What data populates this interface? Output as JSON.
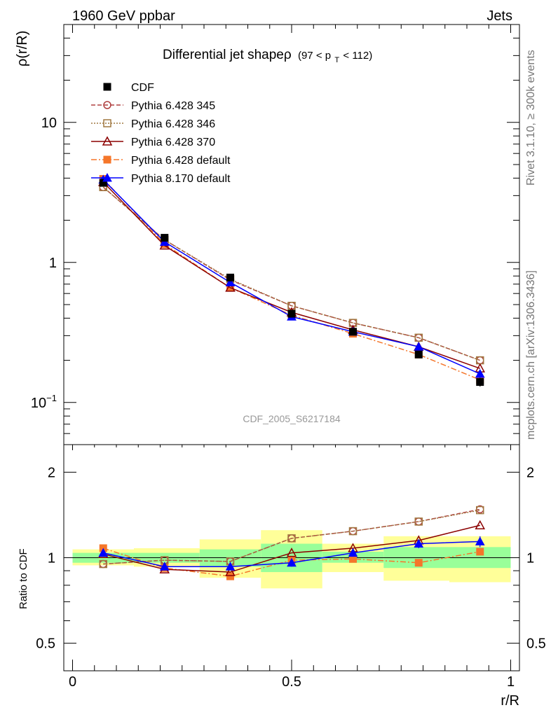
{
  "header": {
    "left": "1960 GeV ppbar",
    "right": "Jets"
  },
  "side_text": {
    "rivet": "Rivet 3.1.10, ≥ 300k events",
    "mcplots": "mcplots.cern.ch [arXiv:1306.3436]"
  },
  "title": {
    "main": "Differential jet shapeρ",
    "cut_pre": "(97 < p",
    "cut_sub": "T",
    "cut_post": " < 112)"
  },
  "watermark": "CDF_2005_S6217184",
  "colors": {
    "cdf": "#000000",
    "p345": "#b04040",
    "p346": "#a07840",
    "p370": "#8b0000",
    "p6def": "#f5762a",
    "p8def": "#0000ff",
    "band_inner": "#99ff99",
    "band_outer": "#ffff99"
  },
  "chart_data": [
    {
      "type": "line",
      "panel": "main",
      "ylabel": "ρ(r/R)",
      "yscale": "log",
      "ylim": [
        0.05,
        50
      ],
      "yticks": [
        {
          "v": 0.1,
          "base": "10",
          "exp": "−1"
        },
        {
          "v": 1,
          "base": "1",
          "exp": ""
        },
        {
          "v": 10,
          "base": "10",
          "exp": ""
        }
      ],
      "xlim": [
        -0.02,
        1.02
      ],
      "x": [
        0.07,
        0.21,
        0.36,
        0.5,
        0.64,
        0.79,
        0.93
      ],
      "legend_position": "top-left",
      "series": [
        {
          "name": "CDF",
          "key": "cdf",
          "marker": "square",
          "dash": "",
          "values": [
            3.7,
            1.5,
            0.78,
            0.43,
            0.32,
            0.22,
            0.14
          ],
          "yerr": [
            0.12,
            0.06,
            0.04,
            0.02,
            0.015,
            0.012,
            0.01
          ]
        },
        {
          "name": "Pythia 6.428 345",
          "key": "p345",
          "marker": "circle-open",
          "dash": "6,3",
          "values": [
            3.45,
            1.45,
            0.75,
            0.49,
            0.37,
            0.29,
            0.2
          ]
        },
        {
          "name": "Pythia 6.428 346",
          "key": "p346",
          "marker": "square-open",
          "dash": "2,2",
          "values": [
            3.45,
            1.45,
            0.76,
            0.49,
            0.37,
            0.29,
            0.2
          ]
        },
        {
          "name": "Pythia 6.428 370",
          "key": "p370",
          "marker": "triangle-open",
          "dash": "",
          "values": [
            3.75,
            1.32,
            0.66,
            0.44,
            0.33,
            0.25,
            0.175
          ]
        },
        {
          "name": "Pythia 6.428 default",
          "key": "p6def",
          "marker": "square",
          "dash": "8,3,2,3",
          "values": [
            3.95,
            1.35,
            0.66,
            0.42,
            0.31,
            0.22,
            0.145
          ]
        },
        {
          "name": "Pythia 8.170 default",
          "key": "p8def",
          "marker": "triangle",
          "dash": "",
          "values": [
            3.9,
            1.4,
            0.72,
            0.41,
            0.32,
            0.25,
            0.16
          ]
        }
      ]
    },
    {
      "type": "line",
      "panel": "ratio",
      "ylabel": "Ratio to CDF",
      "xlabel": "r/R",
      "yscale": "log",
      "ylim": [
        0.4,
        2.5
      ],
      "yticks": [
        {
          "v": 0.5,
          "label": "0.5"
        },
        {
          "v": 1,
          "label": "1"
        },
        {
          "v": 2,
          "label": "2"
        }
      ],
      "xticks": [
        {
          "v": 0,
          "label": "0"
        },
        {
          "v": 0.5,
          "label": "0.5"
        },
        {
          "v": 1,
          "label": "1"
        }
      ],
      "xlim": [
        -0.02,
        1.02
      ],
      "x": [
        0.07,
        0.21,
        0.36,
        0.5,
        0.64,
        0.79,
        0.93
      ],
      "bands": [
        {
          "x0": 0.0,
          "x1": 0.14,
          "inner": [
            0.96,
            1.04
          ],
          "outer": [
            0.94,
            1.07
          ]
        },
        {
          "x0": 0.14,
          "x1": 0.29,
          "inner": [
            0.96,
            1.04
          ],
          "outer": [
            0.93,
            1.08
          ]
        },
        {
          "x0": 0.29,
          "x1": 0.43,
          "inner": [
            0.93,
            1.07
          ],
          "outer": [
            0.85,
            1.16
          ]
        },
        {
          "x0": 0.43,
          "x1": 0.57,
          "inner": [
            0.89,
            1.12
          ],
          "outer": [
            0.78,
            1.25
          ]
        },
        {
          "x0": 0.57,
          "x1": 0.71,
          "inner": [
            0.96,
            1.05
          ],
          "outer": [
            0.89,
            1.12
          ]
        },
        {
          "x0": 0.71,
          "x1": 0.86,
          "inner": [
            0.92,
            1.09
          ],
          "outer": [
            0.83,
            1.19
          ]
        },
        {
          "x0": 0.86,
          "x1": 1.0,
          "inner": [
            0.92,
            1.09
          ],
          "outer": [
            0.82,
            1.19
          ]
        }
      ],
      "series": [
        {
          "name": "Pythia 6.428 345",
          "key": "p345",
          "marker": "circle-open",
          "dash": "6,3",
          "values": [
            0.95,
            0.98,
            0.97,
            1.17,
            1.24,
            1.34,
            1.48
          ]
        },
        {
          "name": "Pythia 6.428 346",
          "key": "p346",
          "marker": "square-open",
          "dash": "2,2",
          "values": [
            0.95,
            0.98,
            0.97,
            1.17,
            1.24,
            1.34,
            1.47
          ]
        },
        {
          "name": "Pythia 6.428 370",
          "key": "p370",
          "marker": "triangle-open",
          "dash": "",
          "values": [
            1.03,
            0.91,
            0.89,
            1.04,
            1.08,
            1.15,
            1.3
          ]
        },
        {
          "name": "Pythia 6.428 default",
          "key": "p6def",
          "marker": "square",
          "dash": "8,3,2,3",
          "values": [
            1.08,
            0.92,
            0.86,
            0.98,
            0.99,
            0.96,
            1.05
          ]
        },
        {
          "name": "Pythia 8.170 default",
          "key": "p8def",
          "marker": "triangle",
          "dash": "",
          "values": [
            1.04,
            0.93,
            0.93,
            0.96,
            1.04,
            1.12,
            1.14
          ],
          "yerr": [
            0.02,
            0.02,
            0.02,
            0.03,
            0.03,
            0.04,
            0.05
          ]
        }
      ]
    }
  ]
}
